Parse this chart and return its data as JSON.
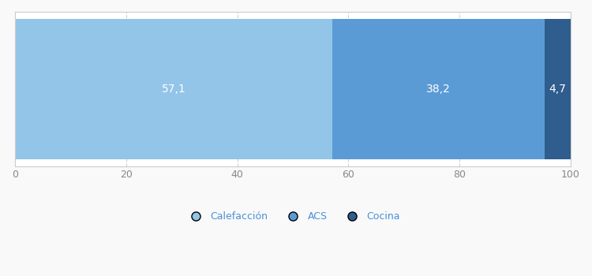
{
  "categories": [
    ""
  ],
  "segments": [
    {
      "label": "Calefacción",
      "value": 57.1,
      "color": "#92C5E8"
    },
    {
      "label": "ACS",
      "value": 38.2,
      "color": "#5B9BD5"
    },
    {
      "label": "Cocina",
      "value": 4.7,
      "color": "#2E5D8E"
    }
  ],
  "xlim": [
    0,
    100
  ],
  "xticks": [
    0,
    20,
    40,
    60,
    80,
    100
  ],
  "bar_height": 0.55,
  "label_fontsize": 10,
  "legend_fontsize": 9,
  "tick_fontsize": 9,
  "grid_color": "#D0D0D0",
  "background_color": "#F9F9F9",
  "axes_background": "#FFFFFF",
  "border_color": "#CCCCCC",
  "text_color": "#FFFFFF",
  "label_color": "#4A90D9"
}
